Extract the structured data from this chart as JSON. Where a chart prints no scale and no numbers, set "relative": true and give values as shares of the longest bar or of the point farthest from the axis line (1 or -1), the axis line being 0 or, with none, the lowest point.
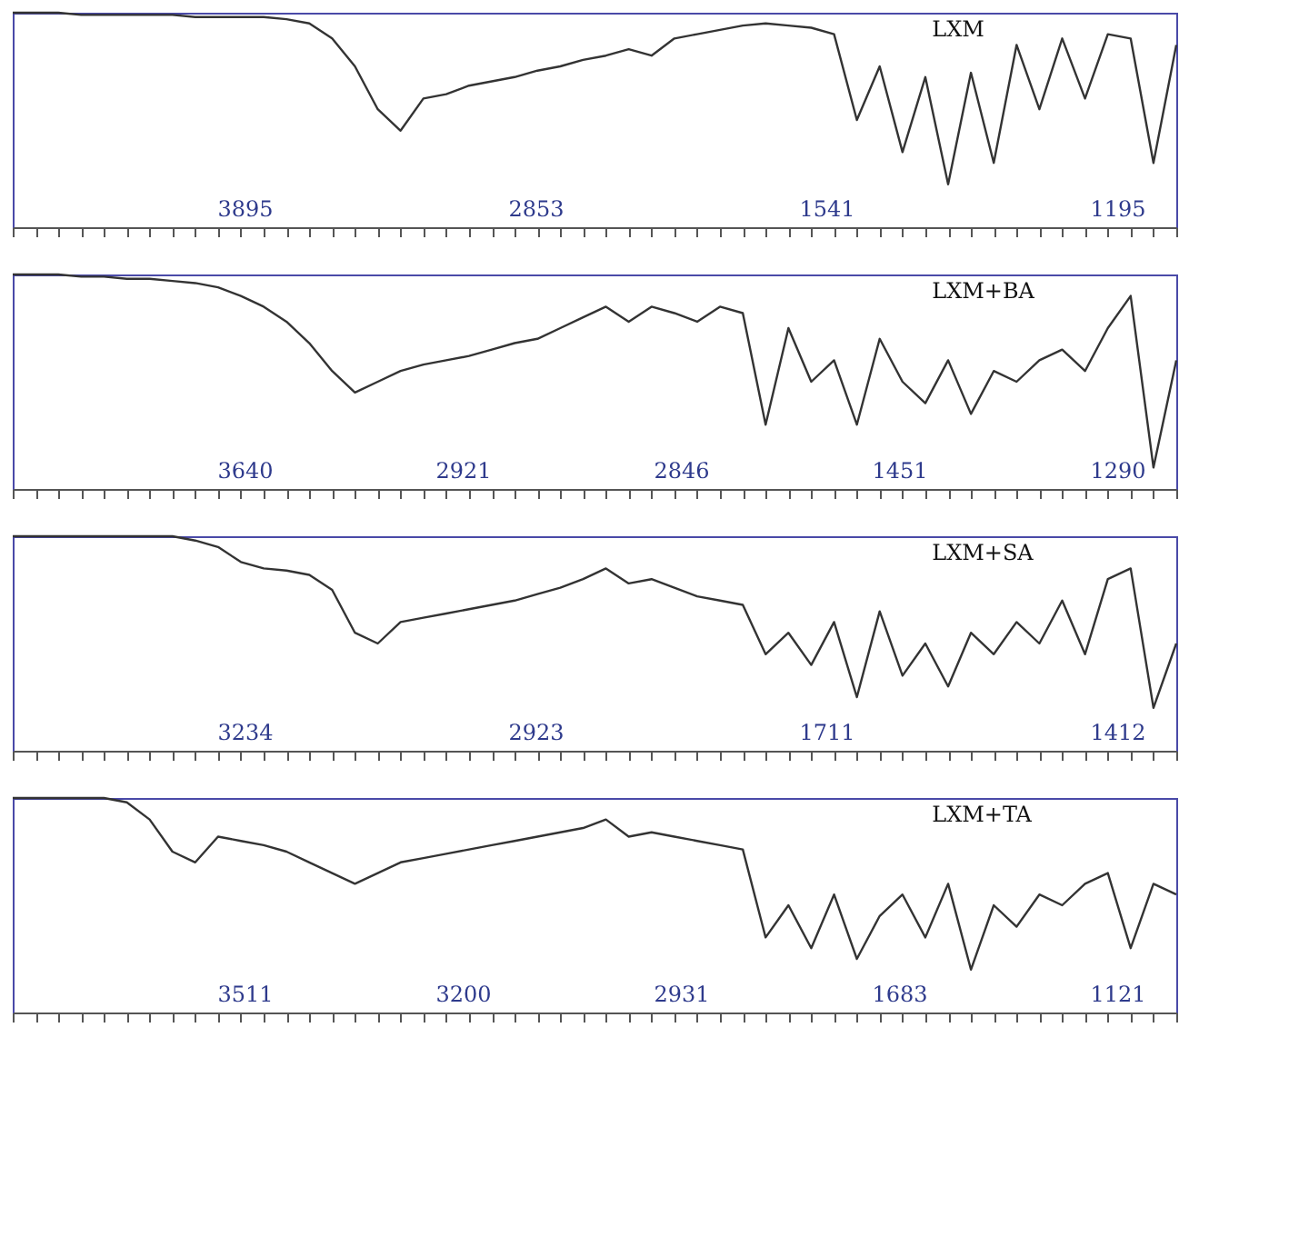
{
  "chart_data": [
    {
      "type": "line",
      "relative": true,
      "tick_labels": false,
      "categories": [
        null,
        null,
        null,
        null,
        null,
        null,
        null,
        null,
        null,
        null,
        null,
        null,
        null,
        null,
        null,
        null,
        null,
        null,
        null,
        null,
        null,
        null,
        null,
        null,
        null,
        null,
        null,
        null,
        null,
        null,
        null,
        null,
        null,
        null,
        null,
        null,
        null,
        null,
        null,
        null,
        null,
        null,
        null,
        null,
        null,
        null,
        null,
        null,
        null,
        null,
        null,
        null
      ],
      "series": [
        {
          "name": "LXM",
          "color": "#333333",
          "values": [
            1,
            1,
            1,
            0.99,
            0.99,
            0.99,
            0.99,
            0.99,
            0.98,
            0.98,
            0.98,
            0.98,
            0.97,
            0.95,
            0.88,
            0.75,
            0.55,
            0.45,
            0.6,
            0.62,
            0.66,
            0.68,
            0.7,
            0.73,
            0.75,
            0.78,
            0.8,
            0.83,
            0.8,
            0.88,
            0.9,
            0.92,
            0.94,
            0.95,
            0.94,
            0.93,
            0.9,
            0.5,
            0.75,
            0.35,
            0.7,
            0.2,
            0.72,
            0.3,
            0.85,
            0.55,
            0.88,
            0.6,
            0.9,
            0.88,
            0.3,
            0.85
          ]
        }
      ],
      "annotations": [
        "3895",
        "2853",
        "1541",
        "1195"
      ]
    },
    {
      "type": "line",
      "relative": true,
      "tick_labels": false,
      "categories": [
        null,
        null,
        null,
        null,
        null,
        null,
        null,
        null,
        null,
        null,
        null,
        null,
        null,
        null,
        null,
        null,
        null,
        null,
        null,
        null,
        null,
        null,
        null,
        null,
        null,
        null,
        null,
        null,
        null,
        null,
        null,
        null,
        null,
        null,
        null,
        null,
        null,
        null,
        null,
        null,
        null,
        null,
        null,
        null,
        null,
        null,
        null,
        null,
        null,
        null,
        null,
        null
      ],
      "series": [
        {
          "name": "LXM+BA",
          "color": "#333333",
          "values": [
            1,
            1,
            1,
            0.99,
            0.99,
            0.98,
            0.98,
            0.97,
            0.96,
            0.94,
            0.9,
            0.85,
            0.78,
            0.68,
            0.55,
            0.45,
            0.5,
            0.55,
            0.58,
            0.6,
            0.62,
            0.65,
            0.68,
            0.7,
            0.75,
            0.8,
            0.85,
            0.78,
            0.85,
            0.82,
            0.78,
            0.85,
            0.82,
            0.3,
            0.75,
            0.5,
            0.6,
            0.3,
            0.7,
            0.5,
            0.4,
            0.6,
            0.35,
            0.55,
            0.5,
            0.6,
            0.65,
            0.55,
            0.75,
            0.9,
            0.1,
            0.6
          ]
        }
      ],
      "annotations": [
        "3640",
        "2921",
        "2846",
        "1451",
        "1290"
      ]
    },
    {
      "type": "line",
      "relative": true,
      "tick_labels": false,
      "categories": [
        null,
        null,
        null,
        null,
        null,
        null,
        null,
        null,
        null,
        null,
        null,
        null,
        null,
        null,
        null,
        null,
        null,
        null,
        null,
        null,
        null,
        null,
        null,
        null,
        null,
        null,
        null,
        null,
        null,
        null,
        null,
        null,
        null,
        null,
        null,
        null,
        null,
        null,
        null,
        null,
        null,
        null,
        null,
        null,
        null,
        null,
        null,
        null,
        null,
        null,
        null,
        null
      ],
      "series": [
        {
          "name": "LXM+SA",
          "color": "#333333",
          "values": [
            1,
            1,
            1,
            1,
            1,
            1,
            1,
            1,
            0.98,
            0.95,
            0.88,
            0.85,
            0.84,
            0.82,
            0.75,
            0.55,
            0.5,
            0.6,
            0.62,
            0.64,
            0.66,
            0.68,
            0.7,
            0.73,
            0.76,
            0.8,
            0.85,
            0.78,
            0.8,
            0.76,
            0.72,
            0.7,
            0.68,
            0.45,
            0.55,
            0.4,
            0.6,
            0.25,
            0.65,
            0.35,
            0.5,
            0.3,
            0.55,
            0.45,
            0.6,
            0.5,
            0.7,
            0.45,
            0.8,
            0.85,
            0.2,
            0.5
          ]
        }
      ],
      "annotations": [
        "3234",
        "2923",
        "1711",
        "1412"
      ]
    },
    {
      "type": "line",
      "relative": true,
      "tick_labels": false,
      "categories": [
        null,
        null,
        null,
        null,
        null,
        null,
        null,
        null,
        null,
        null,
        null,
        null,
        null,
        null,
        null,
        null,
        null,
        null,
        null,
        null,
        null,
        null,
        null,
        null,
        null,
        null,
        null,
        null,
        null,
        null,
        null,
        null,
        null,
        null,
        null,
        null,
        null,
        null,
        null,
        null,
        null,
        null,
        null,
        null,
        null,
        null,
        null,
        null,
        null,
        null,
        null,
        null
      ],
      "series": [
        {
          "name": "LXM+TA",
          "color": "#333333",
          "values": [
            1,
            1,
            1,
            1,
            1,
            0.98,
            0.9,
            0.75,
            0.7,
            0.82,
            0.8,
            0.78,
            0.75,
            0.7,
            0.65,
            0.6,
            0.65,
            0.7,
            0.72,
            0.74,
            0.76,
            0.78,
            0.8,
            0.82,
            0.84,
            0.86,
            0.9,
            0.82,
            0.84,
            0.82,
            0.8,
            0.78,
            0.76,
            0.35,
            0.5,
            0.3,
            0.55,
            0.25,
            0.45,
            0.55,
            0.35,
            0.6,
            0.2,
            0.5,
            0.4,
            0.55,
            0.5,
            0.6,
            0.65,
            0.3,
            0.6,
            0.55
          ]
        }
      ],
      "annotations": [
        "3511",
        "3200",
        "2931",
        "1683",
        "1121"
      ]
    }
  ]
}
